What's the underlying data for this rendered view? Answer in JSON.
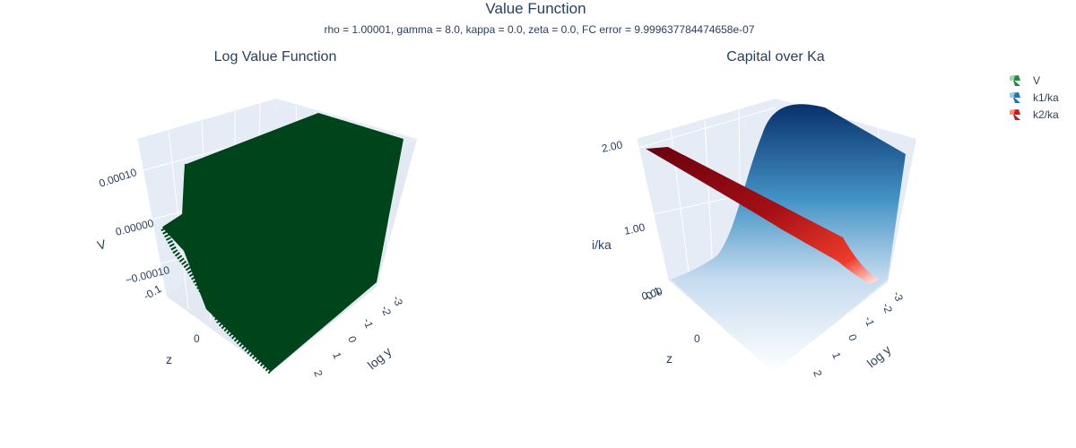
{
  "header": {
    "title": "Value Function",
    "subtitle": "rho = 1.00001, gamma = 8.0, kappa = 0.0, zeta = 0.0, FC error = 9.999637784474658e-07"
  },
  "legend": [
    {
      "name": "V",
      "colors": [
        "#a1d99b",
        "#00441b"
      ]
    },
    {
      "name": "k1/ka",
      "colors": [
        "#f7fbff",
        "#08306b"
      ]
    },
    {
      "name": "k2/ka",
      "colors": [
        "#fff5f0",
        "#67000d"
      ]
    }
  ],
  "chart_data": [
    {
      "type": "surface",
      "title": "Log Value Function",
      "xlabel": "log y",
      "ylabel": "z",
      "zlabel": "V",
      "x_ticks": [
        "-3",
        "-2",
        "-1",
        "0",
        "1",
        "2"
      ],
      "y_ticks": [
        "-0.1",
        "0"
      ],
      "z_ticks": [
        "0.00010",
        "0.00000",
        "−0.00010"
      ],
      "series": [
        {
          "name": "V",
          "colorscale": [
            "#a1d99b",
            "#00441b"
          ],
          "description_values": {
            "x_range": [
              -3,
              2
            ],
            "y_range": [
              -0.1,
              0.1
            ],
            "z_range": [
              -0.00015,
              0.00012
            ]
          }
        }
      ]
    },
    {
      "type": "surface",
      "title": "Capital over Ka",
      "xlabel": "log y",
      "ylabel": "z",
      "zlabel": "i/ka",
      "x_ticks": [
        "-3",
        "-2",
        "-1",
        "0",
        "1",
        "2"
      ],
      "y_ticks": [
        "-0.1",
        "0"
      ],
      "z_ticks": [
        "2.00",
        "1.00",
        "0.00"
      ],
      "series": [
        {
          "name": "k1/ka",
          "colorscale": [
            "#f7fbff",
            "#08306b"
          ],
          "description_values": {
            "z_range": [
              0,
              2
            ],
            "shape": "increasing in z, constant in log y"
          }
        },
        {
          "name": "k2/ka",
          "colorscale": [
            "#fff5f0",
            "#67000d"
          ],
          "description_values": {
            "z_range": [
              0,
              2
            ],
            "shape": "decreasing in z, constant in log y"
          }
        }
      ]
    }
  ]
}
